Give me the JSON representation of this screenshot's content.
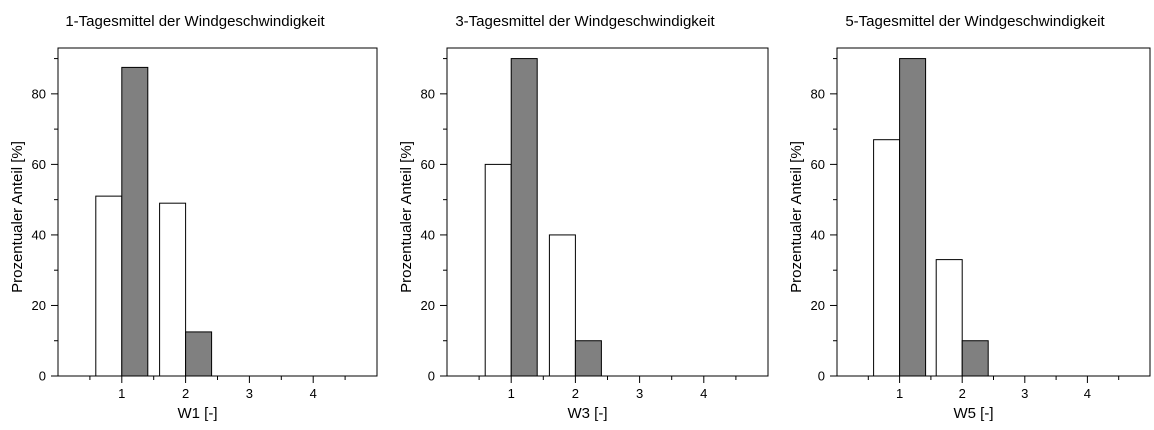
{
  "colors": {
    "white_bar": "#ffffff",
    "grey_bar": "#808080",
    "stroke": "#000000"
  },
  "chart_data": [
    {
      "type": "bar",
      "title": "1-Tagesmittel der Windgeschwindigkeit",
      "xlabel": "W1 [-]",
      "ylabel": "Prozentualer Anteil [%]",
      "categories": [
        1,
        2,
        3,
        4
      ],
      "xlim": [
        0,
        5
      ],
      "ylim": [
        0,
        93
      ],
      "yticks": [
        0,
        20,
        40,
        60,
        80
      ],
      "grid": false,
      "series": [
        {
          "values": [
            51,
            49,
            0,
            0
          ],
          "color": "#ffffff"
        },
        {
          "values": [
            87.5,
            12.5,
            0,
            0
          ],
          "color": "#808080"
        }
      ]
    },
    {
      "type": "bar",
      "title": "3-Tagesmittel der Windgeschwindigkeit",
      "xlabel": "W3 [-]",
      "ylabel": "Prozentualer Anteil [%]",
      "categories": [
        1,
        2,
        3,
        4
      ],
      "xlim": [
        0,
        5
      ],
      "ylim": [
        0,
        93
      ],
      "yticks": [
        0,
        20,
        40,
        60,
        80
      ],
      "grid": false,
      "series": [
        {
          "values": [
            60,
            40,
            0,
            0
          ],
          "color": "#ffffff"
        },
        {
          "values": [
            90,
            10,
            0,
            0
          ],
          "color": "#808080"
        }
      ]
    },
    {
      "type": "bar",
      "title": "5-Tagesmittel der Windgeschwindigkeit",
      "xlabel": "W5 [-]",
      "ylabel": "Prozentualer Anteil [%]",
      "categories": [
        1,
        2,
        3,
        4
      ],
      "xlim": [
        0,
        5
      ],
      "ylim": [
        0,
        93
      ],
      "yticks": [
        0,
        20,
        40,
        60,
        80
      ],
      "grid": false,
      "series": [
        {
          "values": [
            67,
            33,
            0,
            0
          ],
          "color": "#ffffff"
        },
        {
          "values": [
            90,
            10,
            0,
            0
          ],
          "color": "#808080"
        }
      ]
    }
  ]
}
